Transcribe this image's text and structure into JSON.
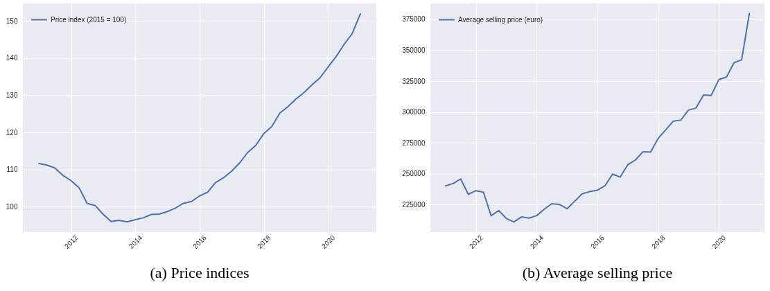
{
  "chart_data": [
    {
      "type": "line",
      "title": "(a) Price indices",
      "x": [
        "2011-01",
        "2011-04",
        "2011-07",
        "2011-10",
        "2012-01",
        "2012-04",
        "2012-07",
        "2012-10",
        "2013-01",
        "2013-04",
        "2013-07",
        "2013-10",
        "2014-01",
        "2014-04",
        "2014-07",
        "2014-10",
        "2015-01",
        "2015-04",
        "2015-07",
        "2015-10",
        "2016-01",
        "2016-04",
        "2016-07",
        "2016-10",
        "2017-01",
        "2017-04",
        "2017-07",
        "2017-10",
        "2018-01",
        "2018-04",
        "2018-07",
        "2018-10",
        "2019-01",
        "2019-04",
        "2019-07",
        "2019-10",
        "2020-01",
        "2020-04",
        "2020-07",
        "2020-10",
        "2021-01"
      ],
      "series": [
        {
          "name": "Price index (2015 = 100)",
          "color": "#4c72b0",
          "values": [
            111.6,
            111.2,
            110.4,
            108.4,
            107.0,
            105.1,
            100.9,
            100.3,
            97.9,
            96.0,
            96.3,
            95.9,
            96.5,
            97.0,
            97.9,
            98.0,
            98.7,
            99.6,
            100.9,
            101.4,
            102.9,
            103.9,
            106.5,
            107.8,
            109.6,
            111.8,
            114.6,
            116.5,
            119.7,
            121.6,
            125.2,
            126.9,
            129.0,
            130.7,
            132.8,
            134.7,
            137.6,
            140.4,
            143.7,
            146.6,
            151.9
          ]
        }
      ],
      "xlim": [
        "2010-07-02",
        "2021-07-02"
      ],
      "xticks": [
        "2012",
        "2014",
        "2016",
        "2018",
        "2020"
      ],
      "ylim": [
        93.15,
        154.7
      ],
      "yticks": [
        100,
        110,
        120,
        130,
        140,
        150
      ],
      "grid": true,
      "legend": "top left",
      "line_style": "solid"
    },
    {
      "type": "line",
      "title": "(b) Average selling price",
      "x": [
        "2011-01",
        "2011-04",
        "2011-07",
        "2011-10",
        "2012-01",
        "2012-04",
        "2012-07",
        "2012-10",
        "2013-01",
        "2013-04",
        "2013-07",
        "2013-10",
        "2014-01",
        "2014-04",
        "2014-07",
        "2014-10",
        "2015-01",
        "2015-04",
        "2015-07",
        "2015-10",
        "2016-01",
        "2016-04",
        "2016-07",
        "2016-10",
        "2017-01",
        "2017-04",
        "2017-07",
        "2017-10",
        "2018-01",
        "2018-04",
        "2018-07",
        "2018-10",
        "2019-01",
        "2019-04",
        "2019-07",
        "2019-10",
        "2020-01",
        "2020-04",
        "2020-07",
        "2020-10",
        "2021-01"
      ],
      "series": [
        {
          "name": "Average selling price (euro)",
          "color": "#4c72b0",
          "values": [
            240100,
            242000,
            245700,
            233200,
            236200,
            234900,
            215900,
            220000,
            213600,
            210800,
            214900,
            214000,
            216000,
            221100,
            225600,
            225000,
            221600,
            227500,
            233600,
            235400,
            236600,
            240100,
            249600,
            247200,
            257300,
            261000,
            267700,
            267400,
            278600,
            285500,
            292500,
            293500,
            301500,
            303200,
            313800,
            313400,
            326300,
            328200,
            339900,
            342200,
            379700
          ]
        }
      ],
      "xlim": [
        "2010-07-02",
        "2021-07-02"
      ],
      "xticks": [
        "2012",
        "2014",
        "2016",
        "2018",
        "2020"
      ],
      "ylim": [
        202600,
        387900
      ],
      "yticks": [
        225000,
        250000,
        275000,
        300000,
        325000,
        350000,
        375000
      ],
      "grid": true,
      "legend": "top left",
      "line_style": "solid"
    }
  ]
}
